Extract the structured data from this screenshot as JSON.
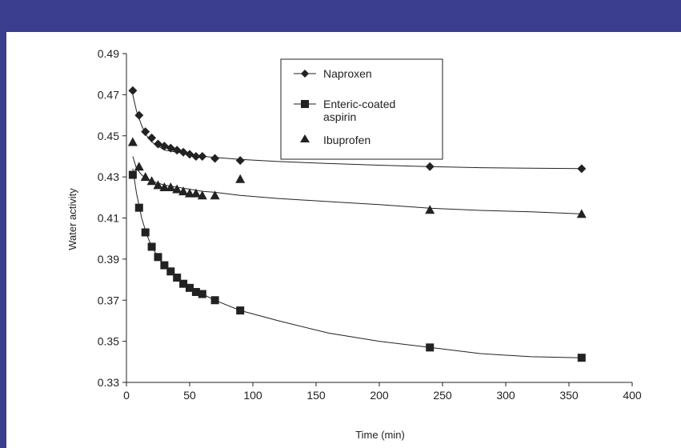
{
  "chart_data": {
    "type": "scatter",
    "xlabel": "Time (min)",
    "ylabel": "Water activity",
    "xlim": [
      0,
      400
    ],
    "ylim": [
      0.33,
      0.49
    ],
    "xticks": [
      "0",
      "50",
      "100",
      "150",
      "200",
      "250",
      "300",
      "350",
      "400"
    ],
    "yticks": [
      "0.33",
      "0.35",
      "0.37",
      "0.39",
      "0.41",
      "0.43",
      "0.45",
      "0.47",
      "0.49"
    ],
    "grid": false,
    "legend_position": "top-center",
    "series": [
      {
        "name": "Naproxen",
        "marker": "diamond",
        "x": [
          5,
          10,
          15,
          20,
          25,
          30,
          35,
          40,
          45,
          50,
          55,
          60,
          70,
          90,
          240,
          360
        ],
        "y": [
          0.472,
          0.46,
          0.452,
          0.449,
          0.446,
          0.445,
          0.444,
          0.443,
          0.442,
          0.441,
          0.44,
          0.44,
          0.439,
          0.438,
          0.435,
          0.434
        ]
      },
      {
        "name": "Enteric-coated aspirin",
        "marker": "square",
        "x": [
          5,
          10,
          15,
          20,
          25,
          30,
          35,
          40,
          45,
          50,
          55,
          60,
          70,
          90,
          240,
          360
        ],
        "y": [
          0.431,
          0.415,
          0.403,
          0.396,
          0.391,
          0.387,
          0.384,
          0.381,
          0.378,
          0.376,
          0.374,
          0.373,
          0.37,
          0.365,
          0.347,
          0.342
        ]
      },
      {
        "name": "Ibuprofen",
        "marker": "triangle",
        "x": [
          5,
          10,
          15,
          20,
          25,
          30,
          35,
          40,
          45,
          50,
          55,
          60,
          70,
          90,
          240,
          360
        ],
        "y": [
          0.447,
          0.435,
          0.43,
          0.428,
          0.426,
          0.425,
          0.425,
          0.424,
          0.423,
          0.422,
          0.422,
          0.421,
          0.421,
          0.429,
          0.414,
          0.412
        ]
      }
    ],
    "fits": [
      {
        "series": "Naproxen",
        "x": [
          5,
          8,
          12,
          16,
          20,
          25,
          30,
          40,
          50,
          60,
          70,
          90,
          120,
          160,
          200,
          240,
          280,
          320,
          360
        ],
        "y": [
          0.47,
          0.462,
          0.455,
          0.45,
          0.447,
          0.445,
          0.443,
          0.442,
          0.441,
          0.44,
          0.4395,
          0.4385,
          0.4375,
          0.4365,
          0.4357,
          0.435,
          0.4345,
          0.4342,
          0.434
        ]
      },
      {
        "series": "Enteric-coated aspirin",
        "x": [
          5,
          8,
          12,
          16,
          20,
          25,
          30,
          40,
          50,
          60,
          70,
          90,
          120,
          160,
          200,
          240,
          280,
          320,
          360
        ],
        "y": [
          0.434,
          0.422,
          0.41,
          0.402,
          0.396,
          0.391,
          0.387,
          0.381,
          0.376,
          0.373,
          0.37,
          0.365,
          0.36,
          0.354,
          0.35,
          0.347,
          0.344,
          0.3425,
          0.342
        ]
      },
      {
        "series": "Ibuprofen",
        "x": [
          5,
          8,
          12,
          16,
          20,
          25,
          30,
          40,
          50,
          60,
          70,
          90,
          120,
          160,
          200,
          240,
          280,
          320,
          360
        ],
        "y": [
          0.44,
          0.434,
          0.431,
          0.429,
          0.428,
          0.427,
          0.426,
          0.425,
          0.424,
          0.423,
          0.4225,
          0.421,
          0.4195,
          0.418,
          0.4165,
          0.4148,
          0.4137,
          0.413,
          0.412
        ]
      }
    ]
  },
  "colors": {
    "frame": "#3b3d8f",
    "ink": "#222222",
    "background": "#ffffff"
  }
}
